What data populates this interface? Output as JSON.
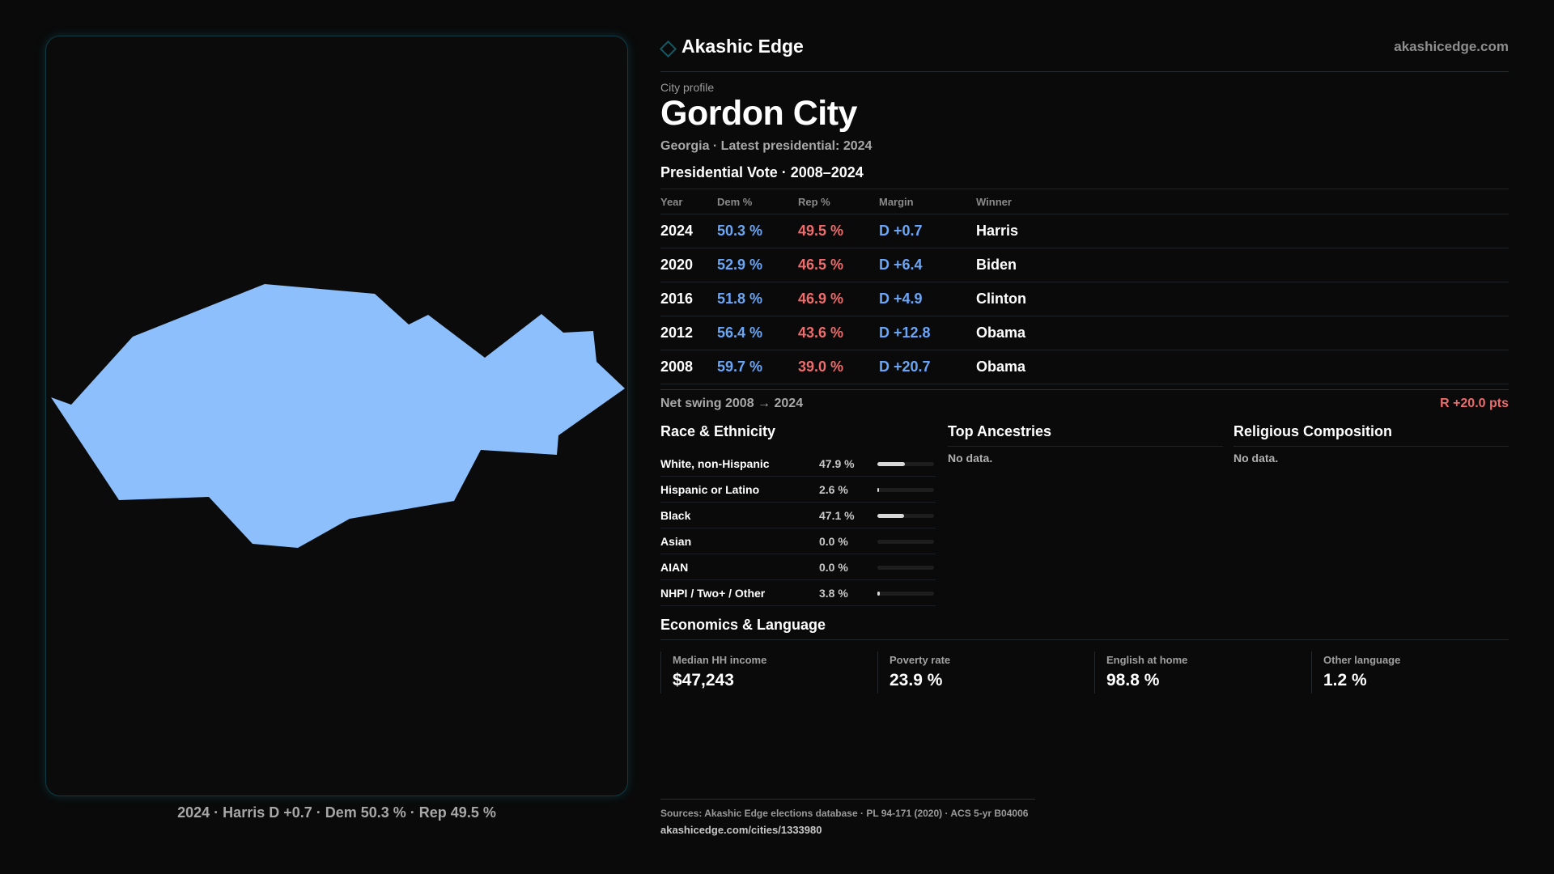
{
  "brand": {
    "name": "Akashic Edge",
    "site": "akashicedge.com"
  },
  "profile": {
    "eyebrow": "City profile",
    "city": "Gordon City",
    "subtitle": "Georgia · Latest presidential: 2024"
  },
  "map": {
    "fill_color": "#8cbffb",
    "caption": "2024 · Harris D +0.7 · Dem 50.3 % · Rep 49.5 %"
  },
  "vote": {
    "title": "Presidential Vote · 2008–2024",
    "headers": {
      "year": "Year",
      "dem": "Dem %",
      "rep": "Rep %",
      "margin": "Margin",
      "winner": "Winner"
    },
    "rows": [
      {
        "year": "2024",
        "dem": "50.3 %",
        "rep": "49.5 %",
        "margin": "D +0.7",
        "winner": "Harris"
      },
      {
        "year": "2020",
        "dem": "52.9 %",
        "rep": "46.5 %",
        "margin": "D +6.4",
        "winner": "Biden"
      },
      {
        "year": "2016",
        "dem": "51.8 %",
        "rep": "46.9 %",
        "margin": "D +4.9",
        "winner": "Clinton"
      },
      {
        "year": "2012",
        "dem": "56.4 %",
        "rep": "43.6 %",
        "margin": "D +12.8",
        "winner": "Obama"
      },
      {
        "year": "2008",
        "dem": "59.7 %",
        "rep": "39.0 %",
        "margin": "D +20.7",
        "winner": "Obama"
      }
    ],
    "swing_label": "Net swing 2008 → 2024",
    "swing_value": "R +20.0 pts"
  },
  "race": {
    "title": "Race & Ethnicity",
    "rows": [
      {
        "name": "White, non-Hispanic",
        "pct": "47.9 %",
        "value": 47.9
      },
      {
        "name": "Hispanic or Latino",
        "pct": "2.6 %",
        "value": 2.6
      },
      {
        "name": "Black",
        "pct": "47.1 %",
        "value": 47.1
      },
      {
        "name": "Asian",
        "pct": "0.0 %",
        "value": 0.0
      },
      {
        "name": "AIAN",
        "pct": "0.0 %",
        "value": 0.0
      },
      {
        "name": "NHPI / Two+ / Other",
        "pct": "3.8 %",
        "value": 3.8
      }
    ]
  },
  "ancestries": {
    "title": "Top Ancestries",
    "empty": "No data."
  },
  "religion": {
    "title": "Religious Composition",
    "empty": "No data."
  },
  "economics": {
    "title": "Economics & Language",
    "cards": [
      {
        "label": "Median HH income",
        "value": "$47,243"
      },
      {
        "label": "Poverty rate",
        "value": "23.9 %"
      },
      {
        "label": "English at home",
        "value": "98.8 %"
      },
      {
        "label": "Other language",
        "value": "1.2 %"
      }
    ]
  },
  "footer": {
    "sources": "Sources: Akashic Edge elections database · PL 94-171 (2020) · ACS 5-yr B04006",
    "url": "akashicedge.com/cities/1333980"
  },
  "colors": {
    "dem": "#6aa6f8",
    "rep": "#f06b6b",
    "background": "#0a0a0a",
    "accent": "#0e5a66"
  }
}
